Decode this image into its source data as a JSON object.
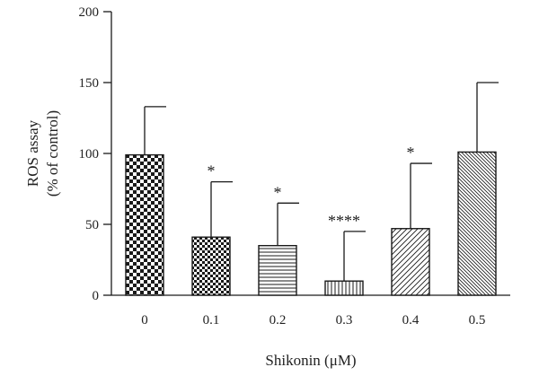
{
  "chart_data": {
    "type": "bar",
    "categories": [
      "0",
      "0.1",
      "0.2",
      "0.3",
      "0.4",
      "0.5"
    ],
    "values": [
      99,
      41,
      35,
      10,
      47,
      101
    ],
    "errors": [
      34,
      39,
      30,
      35,
      46,
      49
    ],
    "significance": [
      "",
      "*",
      "*",
      "****",
      "*",
      ""
    ],
    "patterns": [
      "checker-large",
      "checker-small",
      "horizontal-lines",
      "vertical-lines",
      "diagonal-sparse",
      "diagonal-dense"
    ],
    "xlabel": "Shikonin (μM)",
    "ylabel_line1": "ROS assay",
    "ylabel_line2": "(% of control)",
    "ylim": [
      0,
      200
    ],
    "yticks": [
      "0",
      "50",
      "100",
      "150",
      "200"
    ],
    "grid": false,
    "colors": {
      "stroke": "#1a1a1a",
      "fill": "#ffffff"
    }
  }
}
